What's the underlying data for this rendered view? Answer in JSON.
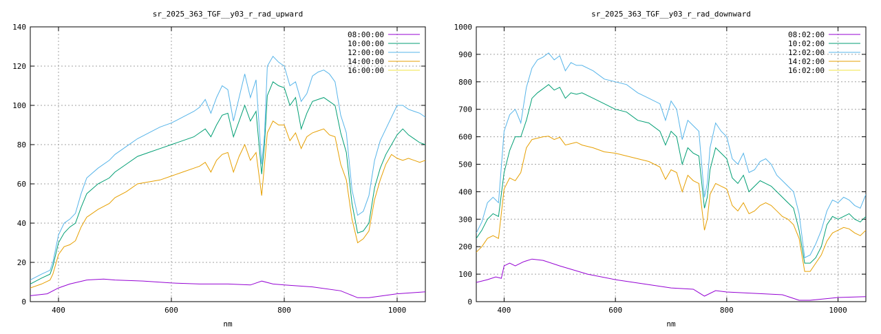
{
  "chart_data": [
    {
      "type": "line",
      "title": "sr_2025_363_TGF__y03_r_rad_upward",
      "xlabel": "nm",
      "ylabel": "",
      "xlim": [
        350,
        1050
      ],
      "ylim": [
        0,
        140
      ],
      "xticks": [
        400,
        600,
        800,
        1000
      ],
      "yticks": [
        0,
        20,
        40,
        60,
        80,
        100,
        120,
        140
      ],
      "grid": true,
      "legend": "top-right",
      "series": [
        {
          "name": "08:00:00",
          "color": "#9400d3",
          "x": [
            350,
            380,
            400,
            420,
            450,
            480,
            500,
            550,
            600,
            650,
            700,
            740,
            760,
            780,
            800,
            850,
            900,
            930,
            950,
            1000,
            1050
          ],
          "y": [
            3,
            4,
            7,
            9,
            11,
            11.5,
            11,
            10.5,
            9.5,
            9,
            9,
            8.5,
            10.5,
            9,
            8.5,
            7.5,
            5.5,
            2,
            2,
            4,
            5
          ]
        },
        {
          "name": "10:00:00",
          "color": "#009e73",
          "x": [
            350,
            370,
            385,
            390,
            400,
            410,
            420,
            430,
            440,
            450,
            470,
            490,
            500,
            520,
            540,
            560,
            580,
            600,
            620,
            640,
            650,
            660,
            670,
            680,
            690,
            700,
            710,
            720,
            730,
            740,
            750,
            760,
            765,
            770,
            780,
            790,
            800,
            810,
            820,
            830,
            840,
            850,
            860,
            870,
            880,
            890,
            900,
            910,
            920,
            930,
            940,
            950,
            960,
            970,
            980,
            990,
            1000,
            1010,
            1020,
            1030,
            1040,
            1050
          ],
          "y": [
            9,
            12,
            14,
            18,
            30,
            35,
            38,
            40,
            48,
            55,
            60,
            63,
            66,
            70,
            74,
            76,
            78,
            80,
            82,
            84,
            86,
            88,
            84,
            90,
            95,
            96,
            84,
            92,
            100,
            92,
            97,
            65,
            80,
            105,
            112,
            110,
            109,
            100,
            104,
            88,
            96,
            102,
            103,
            104,
            102,
            100,
            86,
            76,
            50,
            35,
            36,
            40,
            58,
            68,
            75,
            80,
            85,
            88,
            85,
            83,
            81,
            80
          ]
        },
        {
          "name": "12:00:00",
          "color": "#56b4e9",
          "x": [
            350,
            370,
            385,
            390,
            400,
            410,
            420,
            430,
            440,
            450,
            470,
            490,
            500,
            520,
            540,
            560,
            580,
            600,
            620,
            640,
            650,
            660,
            670,
            680,
            690,
            700,
            710,
            720,
            730,
            740,
            750,
            760,
            765,
            770,
            780,
            790,
            800,
            810,
            820,
            830,
            840,
            850,
            860,
            870,
            880,
            890,
            900,
            910,
            920,
            930,
            940,
            950,
            960,
            970,
            980,
            990,
            1000,
            1010,
            1020,
            1030,
            1040,
            1050
          ],
          "y": [
            11,
            14,
            16,
            20,
            34,
            40,
            42,
            45,
            55,
            63,
            68,
            72,
            75,
            79,
            83,
            86,
            89,
            91,
            94,
            97,
            99,
            103,
            96,
            104,
            110,
            108,
            92,
            104,
            116,
            104,
            113,
            70,
            85,
            120,
            125,
            122,
            120,
            110,
            112,
            102,
            106,
            115,
            117,
            118,
            116,
            112,
            95,
            86,
            57,
            44,
            46,
            54,
            72,
            82,
            88,
            94,
            100,
            100,
            98,
            97,
            96,
            94
          ]
        },
        {
          "name": "14:00:00",
          "color": "#e69f00",
          "x": [
            350,
            370,
            385,
            390,
            400,
            410,
            420,
            430,
            440,
            450,
            470,
            490,
            500,
            520,
            540,
            560,
            580,
            600,
            620,
            640,
            650,
            660,
            670,
            680,
            690,
            700,
            710,
            720,
            730,
            740,
            750,
            760,
            765,
            770,
            780,
            790,
            800,
            810,
            820,
            830,
            840,
            850,
            860,
            870,
            880,
            890,
            900,
            910,
            920,
            930,
            940,
            950,
            960,
            970,
            980,
            990,
            1000,
            1010,
            1020,
            1030,
            1040,
            1050
          ],
          "y": [
            7,
            9,
            11,
            14,
            24,
            28,
            29,
            31,
            38,
            43,
            47,
            50,
            53,
            56,
            60,
            61,
            62,
            64,
            66,
            68,
            69,
            71,
            66,
            72,
            75,
            76,
            66,
            74,
            80,
            72,
            76,
            54,
            70,
            86,
            92,
            90,
            90,
            82,
            86,
            78,
            84,
            86,
            87,
            88,
            85,
            84,
            70,
            62,
            42,
            30,
            32,
            36,
            52,
            62,
            70,
            75,
            73,
            72,
            73,
            72,
            71,
            72
          ]
        },
        {
          "name": "16:00:00",
          "color": "#f0e442",
          "x": [],
          "y": []
        }
      ]
    },
    {
      "type": "line",
      "title": "sr_2025_363_TGF__y03_r_rad_downward",
      "xlabel": "nm",
      "ylabel": "",
      "xlim": [
        350,
        1050
      ],
      "ylim": [
        0,
        1000
      ],
      "xticks": [
        400,
        600,
        800,
        1000
      ],
      "yticks": [
        0,
        100,
        200,
        300,
        400,
        500,
        600,
        700,
        800,
        900,
        1000
      ],
      "grid": true,
      "legend": "top-right",
      "series": [
        {
          "name": "08:02:00",
          "color": "#9400d3",
          "x": [
            350,
            370,
            385,
            395,
            400,
            410,
            420,
            435,
            450,
            470,
            500,
            550,
            600,
            650,
            700,
            740,
            760,
            780,
            800,
            850,
            900,
            930,
            950,
            1000,
            1050
          ],
          "y": [
            70,
            80,
            90,
            85,
            130,
            140,
            130,
            145,
            155,
            150,
            130,
            100,
            80,
            65,
            50,
            45,
            20,
            40,
            35,
            30,
            25,
            5,
            5,
            15,
            18
          ]
        },
        {
          "name": "10:02:00",
          "color": "#009e73",
          "x": [
            350,
            360,
            370,
            380,
            390,
            400,
            410,
            420,
            430,
            440,
            450,
            460,
            470,
            480,
            490,
            500,
            510,
            520,
            530,
            540,
            560,
            580,
            600,
            620,
            640,
            660,
            680,
            690,
            700,
            710,
            720,
            730,
            740,
            750,
            760,
            765,
            770,
            780,
            790,
            800,
            810,
            820,
            830,
            840,
            850,
            860,
            870,
            880,
            890,
            900,
            910,
            920,
            930,
            940,
            950,
            960,
            970,
            980,
            990,
            1000,
            1010,
            1020,
            1030,
            1040,
            1050
          ],
          "y": [
            230,
            260,
            300,
            320,
            310,
            470,
            550,
            600,
            600,
            660,
            740,
            760,
            775,
            790,
            770,
            780,
            740,
            760,
            755,
            760,
            740,
            720,
            700,
            690,
            660,
            650,
            620,
            570,
            620,
            600,
            500,
            560,
            540,
            530,
            340,
            380,
            480,
            560,
            540,
            520,
            450,
            430,
            460,
            400,
            420,
            440,
            430,
            420,
            400,
            380,
            360,
            340,
            260,
            140,
            140,
            160,
            200,
            280,
            310,
            300,
            310,
            320,
            300,
            290,
            310
          ]
        },
        {
          "name": "12:02:00",
          "color": "#56b4e9",
          "x": [
            350,
            360,
            370,
            380,
            390,
            400,
            410,
            420,
            430,
            440,
            450,
            460,
            470,
            480,
            490,
            500,
            510,
            520,
            530,
            540,
            560,
            580,
            600,
            620,
            640,
            660,
            680,
            690,
            700,
            710,
            720,
            730,
            740,
            750,
            760,
            765,
            770,
            780,
            790,
            800,
            810,
            820,
            830,
            840,
            850,
            860,
            870,
            880,
            890,
            900,
            910,
            920,
            930,
            940,
            950,
            960,
            970,
            980,
            990,
            1000,
            1010,
            1020,
            1030,
            1040,
            1050
          ],
          "y": [
            250,
            290,
            360,
            380,
            360,
            620,
            680,
            700,
            650,
            780,
            850,
            880,
            890,
            905,
            880,
            895,
            840,
            870,
            860,
            860,
            840,
            810,
            800,
            790,
            760,
            740,
            720,
            660,
            730,
            700,
            590,
            660,
            640,
            620,
            380,
            430,
            560,
            650,
            620,
            600,
            520,
            500,
            540,
            470,
            480,
            510,
            520,
            500,
            460,
            440,
            420,
            400,
            320,
            160,
            170,
            210,
            260,
            330,
            370,
            360,
            380,
            370,
            350,
            340,
            390
          ]
        },
        {
          "name": "14:02:00",
          "color": "#e69f00",
          "x": [
            350,
            360,
            370,
            380,
            390,
            400,
            410,
            420,
            430,
            440,
            450,
            460,
            470,
            480,
            490,
            500,
            510,
            520,
            530,
            540,
            560,
            580,
            600,
            620,
            640,
            660,
            680,
            690,
            700,
            710,
            720,
            730,
            740,
            750,
            760,
            765,
            770,
            780,
            790,
            800,
            810,
            820,
            830,
            840,
            850,
            860,
            870,
            880,
            890,
            900,
            910,
            920,
            930,
            940,
            950,
            960,
            970,
            980,
            990,
            1000,
            1010,
            1020,
            1030,
            1040,
            1050
          ],
          "y": [
            180,
            200,
            230,
            240,
            230,
            410,
            450,
            440,
            470,
            560,
            590,
            595,
            600,
            602,
            590,
            598,
            570,
            575,
            580,
            570,
            560,
            545,
            540,
            530,
            520,
            510,
            490,
            445,
            480,
            470,
            400,
            460,
            440,
            430,
            260,
            300,
            390,
            430,
            420,
            410,
            350,
            330,
            360,
            320,
            330,
            350,
            360,
            350,
            330,
            310,
            300,
            280,
            230,
            110,
            110,
            140,
            170,
            220,
            250,
            260,
            270,
            265,
            250,
            240,
            260
          ]
        },
        {
          "name": "16:02:00",
          "color": "#f0e442",
          "x": [],
          "y": []
        }
      ]
    }
  ]
}
